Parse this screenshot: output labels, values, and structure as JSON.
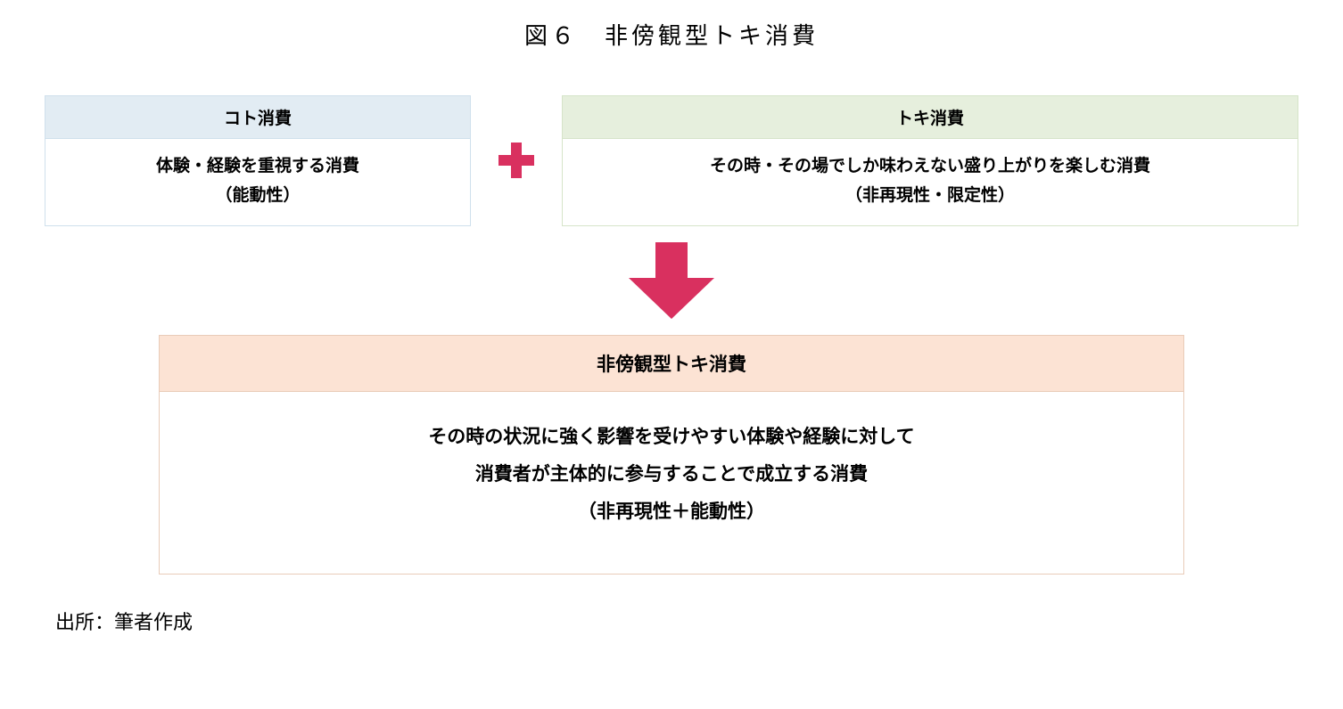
{
  "title": "図６　非傍観型トキ消費",
  "colors": {
    "left_header_bg": "#e2ecf3",
    "left_border": "#cfe0ec",
    "right_header_bg": "#e6efdd",
    "right_border": "#d6e4c9",
    "result_header_bg": "#fce3d4",
    "result_border": "#e9ccb9",
    "plus_color": "#d9305f",
    "arrow_color": "#d9305f",
    "text": "#000000"
  },
  "left_box": {
    "header": "コト消費",
    "body_line1": "体験・経験を重視する消費",
    "body_line2": "（能動性）"
  },
  "right_box": {
    "header": "トキ消費",
    "body_line1": "その時・その場でしか味わえない盛り上がりを楽しむ消費",
    "body_line2": "（非再現性・限定性）"
  },
  "result_box": {
    "header": "非傍観型トキ消費",
    "body_line1": "その時の状況に強く影響を受けやすい体験や経験に対して",
    "body_line2": "消費者が主体的に参与することで成立する消費",
    "body_line3": "（非再現性＋能動性）"
  },
  "source": "出所：筆者作成",
  "plus_icon": {
    "size": 46,
    "stroke_width": 12
  },
  "arrow_icon": {
    "width": 96,
    "height": 86
  }
}
